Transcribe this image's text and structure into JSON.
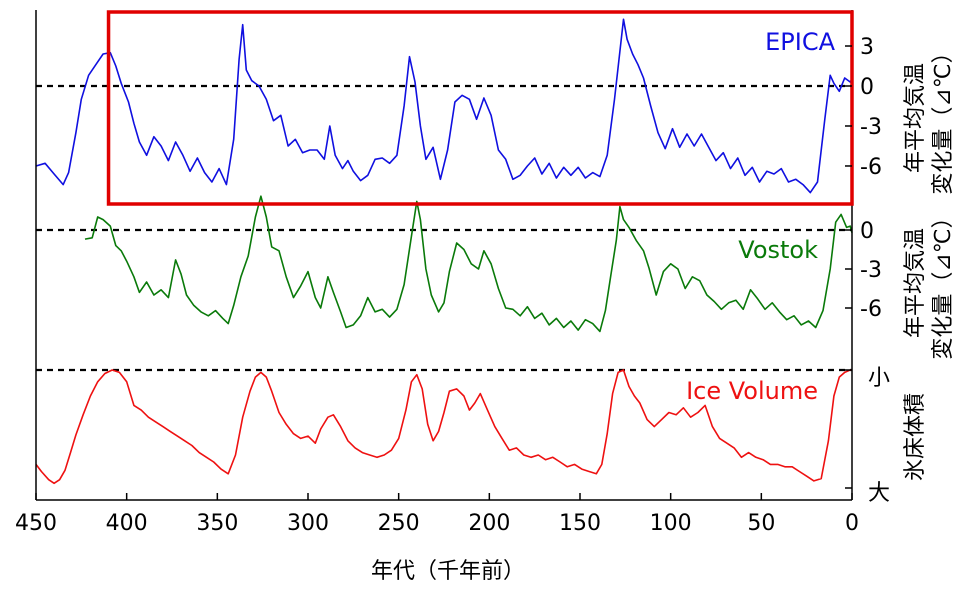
{
  "chart_data": [
    {
      "type": "line",
      "name": "EPICA",
      "color": "#1010e0",
      "xlabel": "年代（千年前）",
      "ylabel_line1": "年平均気温",
      "ylabel_line2": "変化量（⊿℃）",
      "xlim": [
        450,
        0
      ],
      "ylim": [
        -8,
        6
      ],
      "yticks": [
        "3",
        "0",
        "-3",
        "-6"
      ],
      "ytick_values": [
        3,
        0,
        -3,
        -6
      ],
      "reference_line": 0,
      "highlight_box": {
        "color": "#e00000",
        "x_range": [
          410,
          0
        ]
      },
      "points": [
        [
          450,
          -6.0
        ],
        [
          445,
          -5.8
        ],
        [
          440,
          -6.6
        ],
        [
          435,
          -7.4
        ],
        [
          432,
          -6.5
        ],
        [
          428,
          -3.5
        ],
        [
          425,
          -1.0
        ],
        [
          421,
          0.8
        ],
        [
          417,
          1.6
        ],
        [
          413,
          2.4
        ],
        [
          409,
          2.5
        ],
        [
          406,
          1.5
        ],
        [
          403,
          0.2
        ],
        [
          399,
          -1.2
        ],
        [
          396,
          -2.8
        ],
        [
          393,
          -4.2
        ],
        [
          389,
          -5.2
        ],
        [
          385,
          -3.8
        ],
        [
          381,
          -4.5
        ],
        [
          377,
          -5.6
        ],
        [
          373,
          -4.2
        ],
        [
          369,
          -5.2
        ],
        [
          365,
          -6.4
        ],
        [
          361,
          -5.4
        ],
        [
          357,
          -6.5
        ],
        [
          353,
          -7.2
        ],
        [
          349,
          -6.2
        ],
        [
          345,
          -7.4
        ],
        [
          341,
          -4.0
        ],
        [
          338,
          2.0
        ],
        [
          336,
          4.6
        ],
        [
          334,
          1.2
        ],
        [
          331,
          0.4
        ],
        [
          327,
          0.0
        ],
        [
          323,
          -1.0
        ],
        [
          319,
          -2.6
        ],
        [
          315,
          -2.2
        ],
        [
          311,
          -4.5
        ],
        [
          307,
          -4.0
        ],
        [
          303,
          -5.0
        ],
        [
          299,
          -4.8
        ],
        [
          295,
          -4.8
        ],
        [
          291,
          -5.5
        ],
        [
          288,
          -3.0
        ],
        [
          285,
          -5.2
        ],
        [
          281,
          -6.2
        ],
        [
          278,
          -5.6
        ],
        [
          275,
          -6.4
        ],
        [
          271,
          -7.1
        ],
        [
          267,
          -6.7
        ],
        [
          263,
          -5.5
        ],
        [
          259,
          -5.4
        ],
        [
          255,
          -5.8
        ],
        [
          251,
          -5.2
        ],
        [
          247,
          -1.5
        ],
        [
          244,
          2.2
        ],
        [
          241,
          0.3
        ],
        [
          238,
          -3.0
        ],
        [
          235,
          -5.5
        ],
        [
          231,
          -4.6
        ],
        [
          227,
          -7.0
        ],
        [
          223,
          -4.8
        ],
        [
          219,
          -1.2
        ],
        [
          215,
          -0.7
        ],
        [
          211,
          -1.0
        ],
        [
          207,
          -2.5
        ],
        [
          203,
          -0.9
        ],
        [
          199,
          -2.2
        ],
        [
          195,
          -4.8
        ],
        [
          191,
          -5.5
        ],
        [
          187,
          -7.0
        ],
        [
          183,
          -6.7
        ],
        [
          179,
          -6.0
        ],
        [
          175,
          -5.4
        ],
        [
          171,
          -6.6
        ],
        [
          167,
          -5.8
        ],
        [
          163,
          -6.9
        ],
        [
          159,
          -6.1
        ],
        [
          155,
          -6.7
        ],
        [
          151,
          -6.1
        ],
        [
          147,
          -6.9
        ],
        [
          143,
          -6.5
        ],
        [
          139,
          -6.8
        ],
        [
          135,
          -5.2
        ],
        [
          131,
          -1.0
        ],
        [
          128,
          2.6
        ],
        [
          126,
          5.0
        ],
        [
          124,
          3.5
        ],
        [
          121,
          2.4
        ],
        [
          118,
          1.6
        ],
        [
          115,
          0.6
        ],
        [
          111,
          -1.5
        ],
        [
          107,
          -3.5
        ],
        [
          103,
          -4.7
        ],
        [
          99,
          -3.2
        ],
        [
          95,
          -4.6
        ],
        [
          91,
          -3.6
        ],
        [
          87,
          -4.5
        ],
        [
          83,
          -3.6
        ],
        [
          79,
          -4.6
        ],
        [
          75,
          -5.6
        ],
        [
          71,
          -5.0
        ],
        [
          67,
          -6.2
        ],
        [
          63,
          -5.4
        ],
        [
          59,
          -6.7
        ],
        [
          55,
          -6.1
        ],
        [
          51,
          -7.2
        ],
        [
          47,
          -6.4
        ],
        [
          43,
          -6.6
        ],
        [
          39,
          -6.2
        ],
        [
          35,
          -7.2
        ],
        [
          31,
          -7.0
        ],
        [
          27,
          -7.4
        ],
        [
          23,
          -8.0
        ],
        [
          19,
          -7.2
        ],
        [
          15,
          -2.5
        ],
        [
          12,
          0.8
        ],
        [
          10,
          0.2
        ],
        [
          7,
          -0.4
        ],
        [
          4,
          0.6
        ],
        [
          1,
          0.3
        ],
        [
          0,
          0.5
        ]
      ]
    },
    {
      "type": "line",
      "name": "Vostok",
      "color": "#0a7a0a",
      "xlabel": "年代（千年前）",
      "ylabel_line1": "年平均気温",
      "ylabel_line2": "変化量（⊿℃）",
      "xlim": [
        450,
        0
      ],
      "ylim": [
        -9,
        2
      ],
      "yticks": [
        "0",
        "-3",
        "-6"
      ],
      "ytick_values": [
        0,
        -3,
        -6
      ],
      "reference_line": 0,
      "points": [
        [
          423,
          -0.7
        ],
        [
          419,
          -0.6
        ],
        [
          416,
          1.0
        ],
        [
          413,
          0.8
        ],
        [
          409,
          0.3
        ],
        [
          406,
          -1.2
        ],
        [
          403,
          -1.6
        ],
        [
          400,
          -2.4
        ],
        [
          396,
          -3.6
        ],
        [
          393,
          -4.8
        ],
        [
          389,
          -4.0
        ],
        [
          385,
          -5.0
        ],
        [
          381,
          -4.6
        ],
        [
          377,
          -5.2
        ],
        [
          373,
          -2.3
        ],
        [
          370,
          -3.4
        ],
        [
          367,
          -5.0
        ],
        [
          363,
          -5.8
        ],
        [
          359,
          -6.3
        ],
        [
          355,
          -6.6
        ],
        [
          351,
          -6.2
        ],
        [
          347,
          -6.8
        ],
        [
          344,
          -7.2
        ],
        [
          341,
          -5.8
        ],
        [
          337,
          -3.6
        ],
        [
          333,
          -2.0
        ],
        [
          329,
          1.0
        ],
        [
          326,
          2.6
        ],
        [
          323,
          1.0
        ],
        [
          320,
          -1.3
        ],
        [
          316,
          -1.6
        ],
        [
          312,
          -3.6
        ],
        [
          308,
          -5.2
        ],
        [
          304,
          -4.3
        ],
        [
          300,
          -3.2
        ],
        [
          296,
          -5.2
        ],
        [
          293,
          -6.0
        ],
        [
          289,
          -3.6
        ],
        [
          286,
          -4.8
        ],
        [
          282,
          -6.3
        ],
        [
          279,
          -7.5
        ],
        [
          275,
          -7.3
        ],
        [
          271,
          -6.6
        ],
        [
          267,
          -5.2
        ],
        [
          263,
          -6.3
        ],
        [
          259,
          -6.1
        ],
        [
          255,
          -6.7
        ],
        [
          251,
          -6.1
        ],
        [
          247,
          -4.2
        ],
        [
          243,
          -0.5
        ],
        [
          240,
          2.2
        ],
        [
          238,
          0.8
        ],
        [
          235,
          -3.0
        ],
        [
          232,
          -5.0
        ],
        [
          228,
          -6.3
        ],
        [
          225,
          -5.6
        ],
        [
          222,
          -3.2
        ],
        [
          218,
          -1.0
        ],
        [
          214,
          -1.5
        ],
        [
          210,
          -2.6
        ],
        [
          206,
          -3.0
        ],
        [
          203,
          -1.6
        ],
        [
          199,
          -2.6
        ],
        [
          195,
          -4.5
        ],
        [
          191,
          -6.0
        ],
        [
          187,
          -6.1
        ],
        [
          183,
          -6.6
        ],
        [
          179,
          -5.9
        ],
        [
          175,
          -6.8
        ],
        [
          171,
          -6.4
        ],
        [
          167,
          -7.3
        ],
        [
          163,
          -6.8
        ],
        [
          159,
          -7.5
        ],
        [
          155,
          -7.0
        ],
        [
          151,
          -7.7
        ],
        [
          147,
          -6.9
        ],
        [
          143,
          -7.2
        ],
        [
          139,
          -7.8
        ],
        [
          136,
          -6.2
        ],
        [
          133,
          -3.5
        ],
        [
          130,
          -0.8
        ],
        [
          128,
          1.8
        ],
        [
          126,
          0.8
        ],
        [
          123,
          0.2
        ],
        [
          119,
          -0.8
        ],
        [
          115,
          -1.6
        ],
        [
          112,
          -2.9
        ],
        [
          108,
          -5.0
        ],
        [
          104,
          -3.2
        ],
        [
          100,
          -2.6
        ],
        [
          96,
          -3.0
        ],
        [
          92,
          -4.5
        ],
        [
          88,
          -3.6
        ],
        [
          84,
          -3.9
        ],
        [
          80,
          -5.0
        ],
        [
          76,
          -5.5
        ],
        [
          72,
          -6.1
        ],
        [
          68,
          -5.6
        ],
        [
          64,
          -5.4
        ],
        [
          60,
          -6.1
        ],
        [
          56,
          -4.6
        ],
        [
          52,
          -5.3
        ],
        [
          48,
          -6.1
        ],
        [
          44,
          -5.6
        ],
        [
          40,
          -6.3
        ],
        [
          36,
          -6.9
        ],
        [
          32,
          -6.6
        ],
        [
          28,
          -7.3
        ],
        [
          24,
          -7.0
        ],
        [
          20,
          -7.5
        ],
        [
          16,
          -6.2
        ],
        [
          12,
          -3.0
        ],
        [
          9,
          0.6
        ],
        [
          6,
          1.2
        ],
        [
          3,
          0.2
        ],
        [
          1,
          0.3
        ],
        [
          0,
          -0.2
        ]
      ]
    },
    {
      "type": "line",
      "name": "Ice Volume",
      "color": "#ee1111",
      "xlabel": "年代（千年前）",
      "ylabel": "氷床体積",
      "ylabel_top": "小",
      "ylabel_bottom": "大",
      "xlim": [
        450,
        0
      ],
      "ylim": [
        0,
        1
      ],
      "reference_line": 0,
      "points": [
        [
          450,
          0.8
        ],
        [
          447,
          0.86
        ],
        [
          443,
          0.93
        ],
        [
          440,
          0.96
        ],
        [
          437,
          0.93
        ],
        [
          434,
          0.85
        ],
        [
          431,
          0.7
        ],
        [
          428,
          0.55
        ],
        [
          424,
          0.38
        ],
        [
          420,
          0.22
        ],
        [
          416,
          0.1
        ],
        [
          412,
          0.03
        ],
        [
          408,
          0.0
        ],
        [
          404,
          0.02
        ],
        [
          400,
          0.1
        ],
        [
          396,
          0.3
        ],
        [
          392,
          0.34
        ],
        [
          388,
          0.4
        ],
        [
          384,
          0.44
        ],
        [
          380,
          0.48
        ],
        [
          376,
          0.52
        ],
        [
          372,
          0.56
        ],
        [
          368,
          0.6
        ],
        [
          364,
          0.64
        ],
        [
          360,
          0.7
        ],
        [
          356,
          0.74
        ],
        [
          352,
          0.78
        ],
        [
          348,
          0.84
        ],
        [
          344,
          0.88
        ],
        [
          340,
          0.72
        ],
        [
          336,
          0.4
        ],
        [
          332,
          0.18
        ],
        [
          329,
          0.06
        ],
        [
          326,
          0.02
        ],
        [
          323,
          0.06
        ],
        [
          320,
          0.18
        ],
        [
          316,
          0.36
        ],
        [
          312,
          0.46
        ],
        [
          308,
          0.54
        ],
        [
          304,
          0.58
        ],
        [
          300,
          0.56
        ],
        [
          296,
          0.62
        ],
        [
          293,
          0.5
        ],
        [
          289,
          0.4
        ],
        [
          286,
          0.38
        ],
        [
          282,
          0.48
        ],
        [
          278,
          0.6
        ],
        [
          274,
          0.66
        ],
        [
          270,
          0.7
        ],
        [
          266,
          0.72
        ],
        [
          262,
          0.74
        ],
        [
          258,
          0.72
        ],
        [
          254,
          0.68
        ],
        [
          250,
          0.58
        ],
        [
          246,
          0.34
        ],
        [
          243,
          0.1
        ],
        [
          240,
          0.04
        ],
        [
          237,
          0.16
        ],
        [
          234,
          0.46
        ],
        [
          231,
          0.6
        ],
        [
          228,
          0.52
        ],
        [
          225,
          0.36
        ],
        [
          222,
          0.18
        ],
        [
          218,
          0.16
        ],
        [
          214,
          0.22
        ],
        [
          211,
          0.34
        ],
        [
          208,
          0.28
        ],
        [
          205,
          0.2
        ],
        [
          201,
          0.34
        ],
        [
          197,
          0.48
        ],
        [
          193,
          0.58
        ],
        [
          189,
          0.68
        ],
        [
          185,
          0.66
        ],
        [
          181,
          0.72
        ],
        [
          177,
          0.74
        ],
        [
          173,
          0.72
        ],
        [
          169,
          0.76
        ],
        [
          165,
          0.74
        ],
        [
          161,
          0.78
        ],
        [
          157,
          0.82
        ],
        [
          153,
          0.8
        ],
        [
          149,
          0.84
        ],
        [
          145,
          0.86
        ],
        [
          141,
          0.88
        ],
        [
          138,
          0.8
        ],
        [
          135,
          0.54
        ],
        [
          132,
          0.2
        ],
        [
          129,
          0.02
        ],
        [
          126,
          0.0
        ],
        [
          123,
          0.14
        ],
        [
          120,
          0.22
        ],
        [
          117,
          0.28
        ],
        [
          113,
          0.42
        ],
        [
          109,
          0.48
        ],
        [
          105,
          0.42
        ],
        [
          101,
          0.36
        ],
        [
          97,
          0.38
        ],
        [
          93,
          0.32
        ],
        [
          89,
          0.4
        ],
        [
          85,
          0.36
        ],
        [
          81,
          0.3
        ],
        [
          77,
          0.48
        ],
        [
          73,
          0.58
        ],
        [
          69,
          0.62
        ],
        [
          65,
          0.66
        ],
        [
          61,
          0.74
        ],
        [
          57,
          0.7
        ],
        [
          53,
          0.74
        ],
        [
          49,
          0.76
        ],
        [
          45,
          0.8
        ],
        [
          41,
          0.8
        ],
        [
          37,
          0.82
        ],
        [
          33,
          0.82
        ],
        [
          29,
          0.86
        ],
        [
          25,
          0.9
        ],
        [
          21,
          0.94
        ],
        [
          17,
          0.92
        ],
        [
          13,
          0.6
        ],
        [
          10,
          0.22
        ],
        [
          7,
          0.06
        ],
        [
          4,
          0.02
        ],
        [
          1,
          0.0
        ],
        [
          0,
          0.0
        ]
      ]
    }
  ],
  "x_axis": {
    "label": "年代（千年前）",
    "ticks": [
      450,
      400,
      350,
      300,
      250,
      200,
      150,
      100,
      50,
      0
    ]
  },
  "colors": {
    "axis": "#000000",
    "highlight": "#e00000",
    "reference": "#000000"
  }
}
